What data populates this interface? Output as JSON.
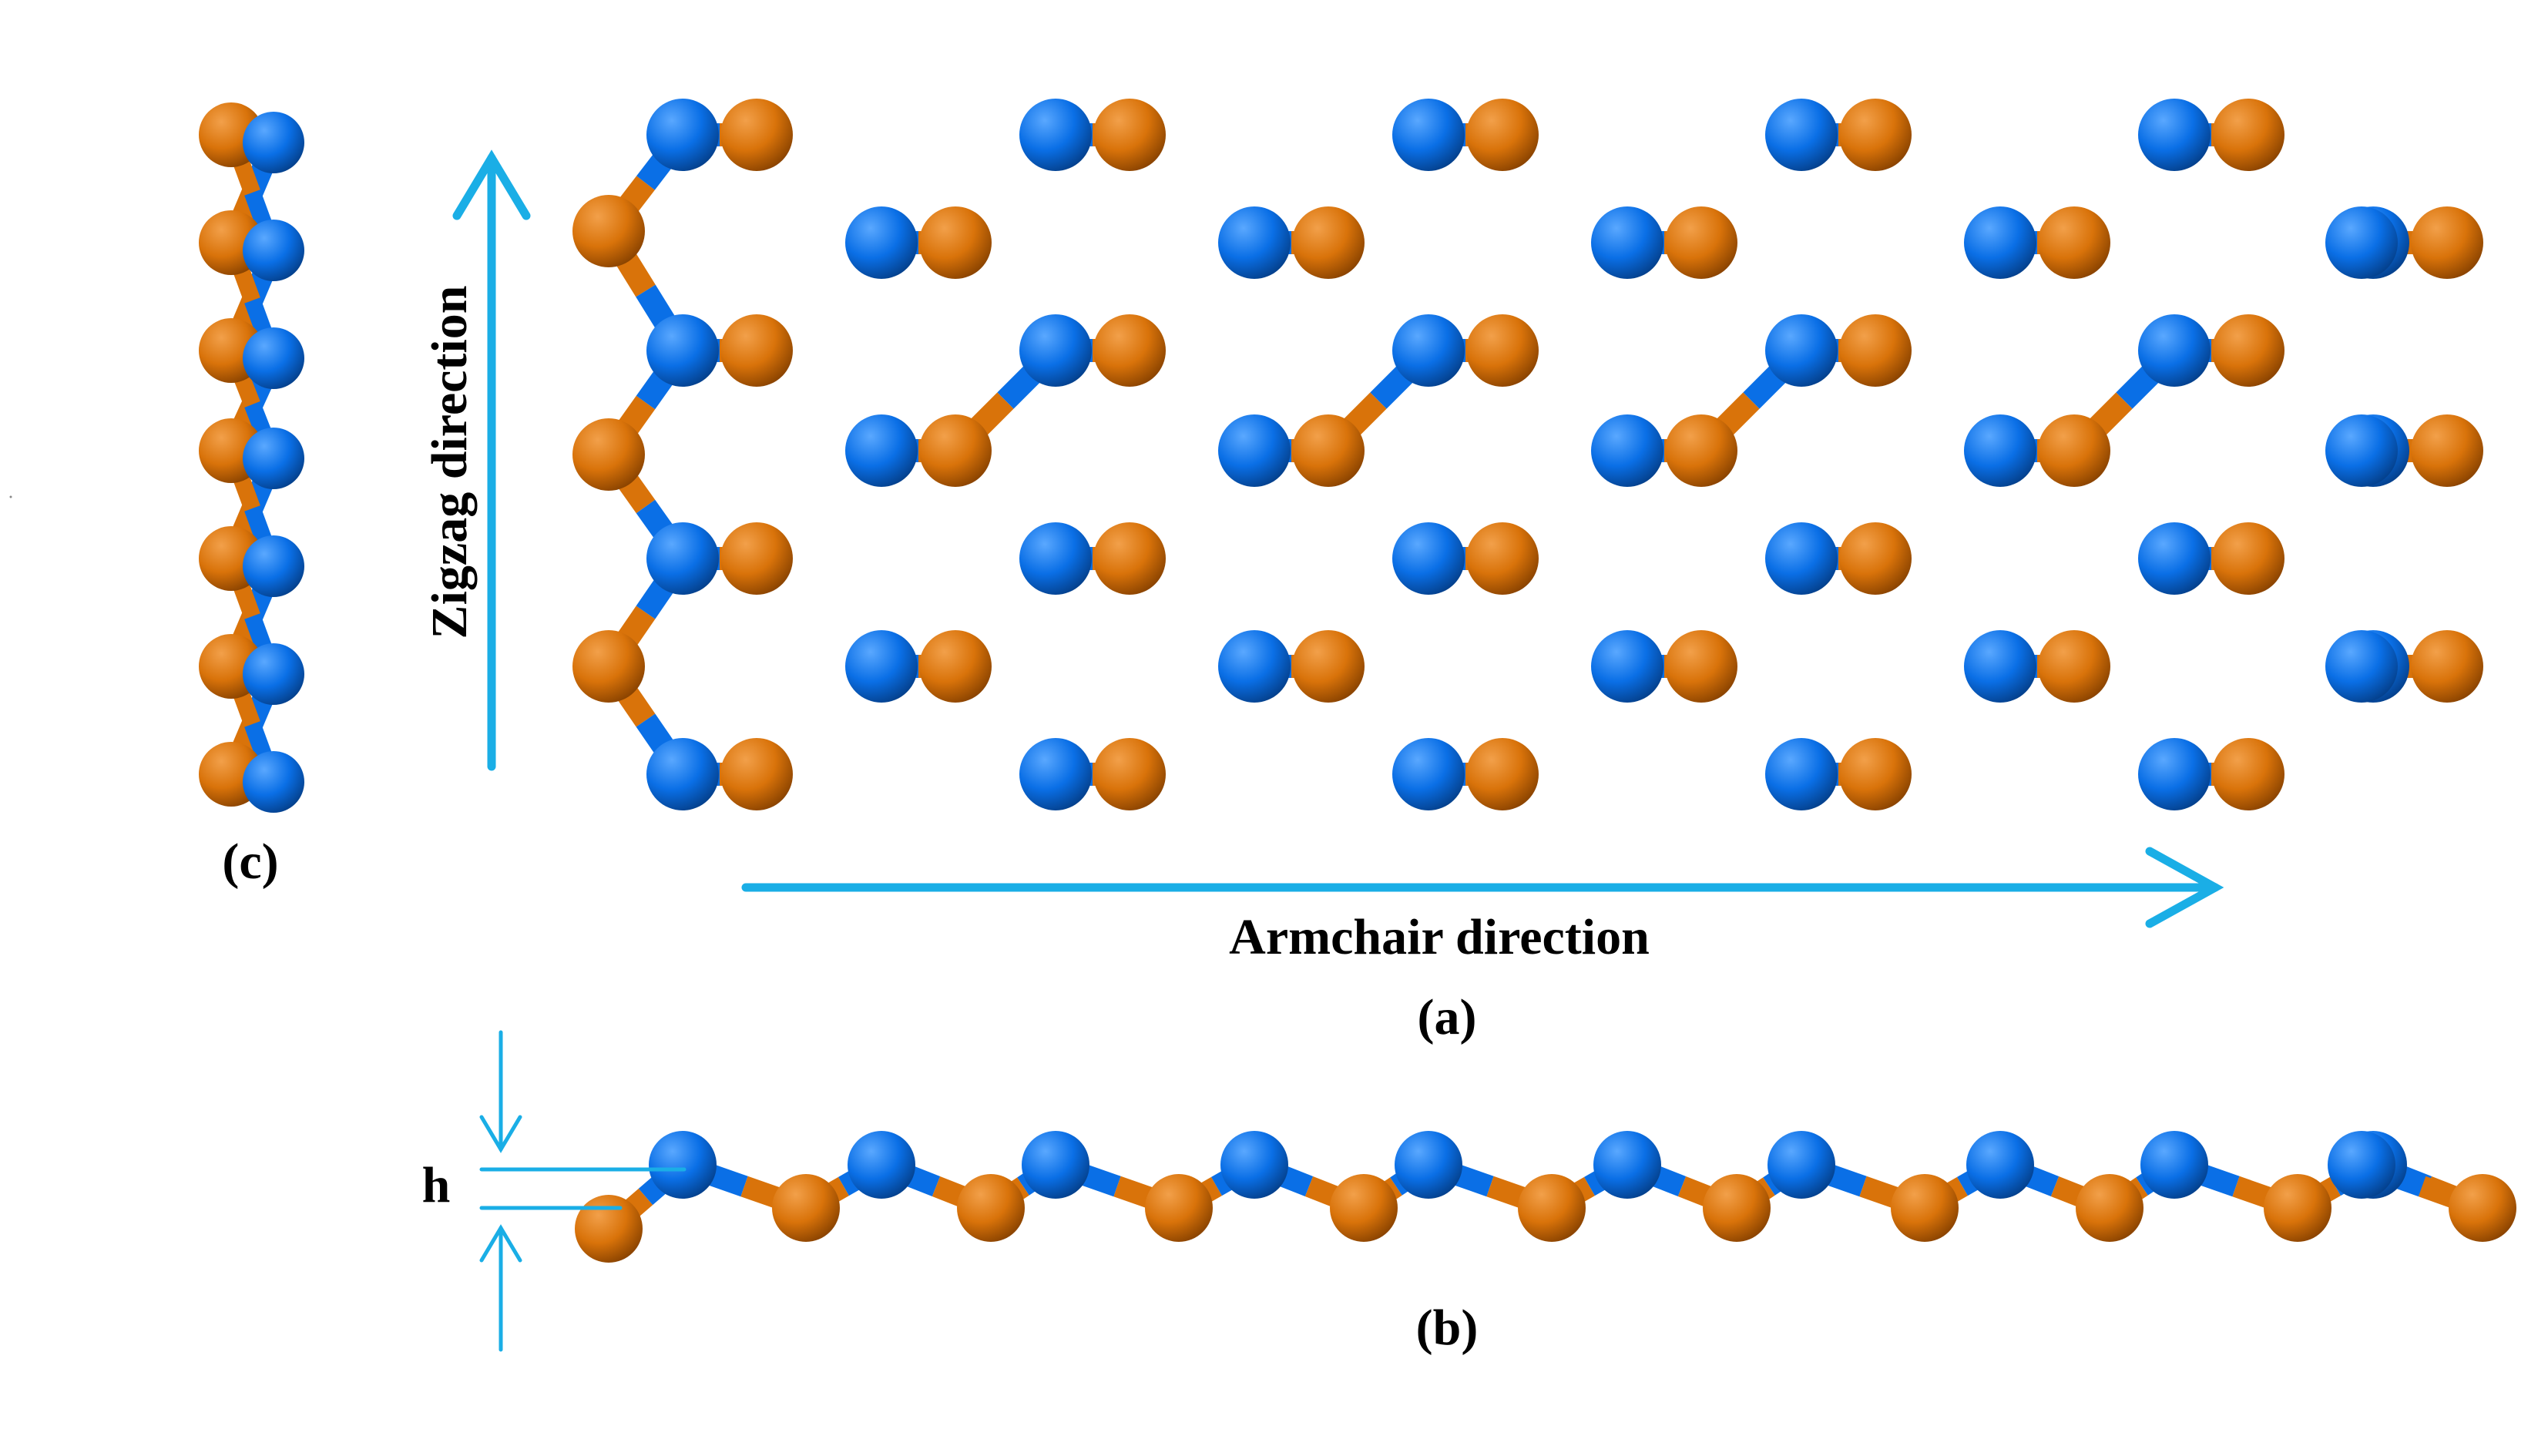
{
  "labels": {
    "zigzag": "Zigzag direction",
    "armchair": "Armchair direction",
    "panel_a": "(a)",
    "panel_b": "(b)",
    "panel_c": "(c)",
    "height": "h"
  },
  "colors": {
    "atom_orange": "#D9730A",
    "atom_blue": "#0A6FE6",
    "arrow": "#1AAEE6"
  }
}
